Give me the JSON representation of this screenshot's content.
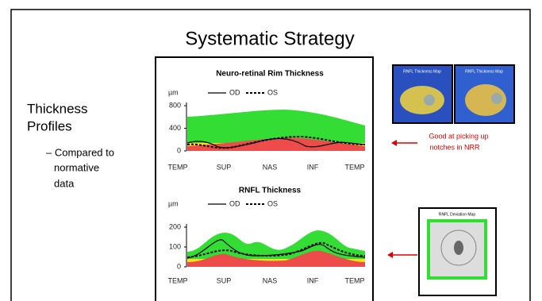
{
  "slide": {
    "title": "Systematic Strategy",
    "heading": [
      "Thickness",
      "Profiles"
    ],
    "bullet": [
      "– Compared to",
      "normative",
      "data"
    ],
    "charts": [
      {
        "title": "Neuro-retinal Rim Thickness",
        "unit": "µm",
        "legend": [
          "OD",
          "OS"
        ],
        "xlabels": [
          "TEMP",
          "SUP",
          "NAS",
          "INF",
          "TEMP"
        ],
        "yticks": [
          800,
          400,
          0
        ]
      },
      {
        "title": "RNFL Thickness",
        "unit": "µm",
        "legend": [
          "OD",
          "OS"
        ],
        "xlabels": [
          "TEMP",
          "SUP",
          "NAS",
          "INF",
          "TEMP"
        ],
        "yticks": [
          200,
          100,
          0
        ]
      }
    ],
    "annotation": [
      "Good at picking up",
      "notches in NRR"
    ],
    "thumbnails": [
      "RNFL Thickness Map",
      "RNFL Thickness Map",
      "RNFL Deviation Map"
    ]
  }
}
